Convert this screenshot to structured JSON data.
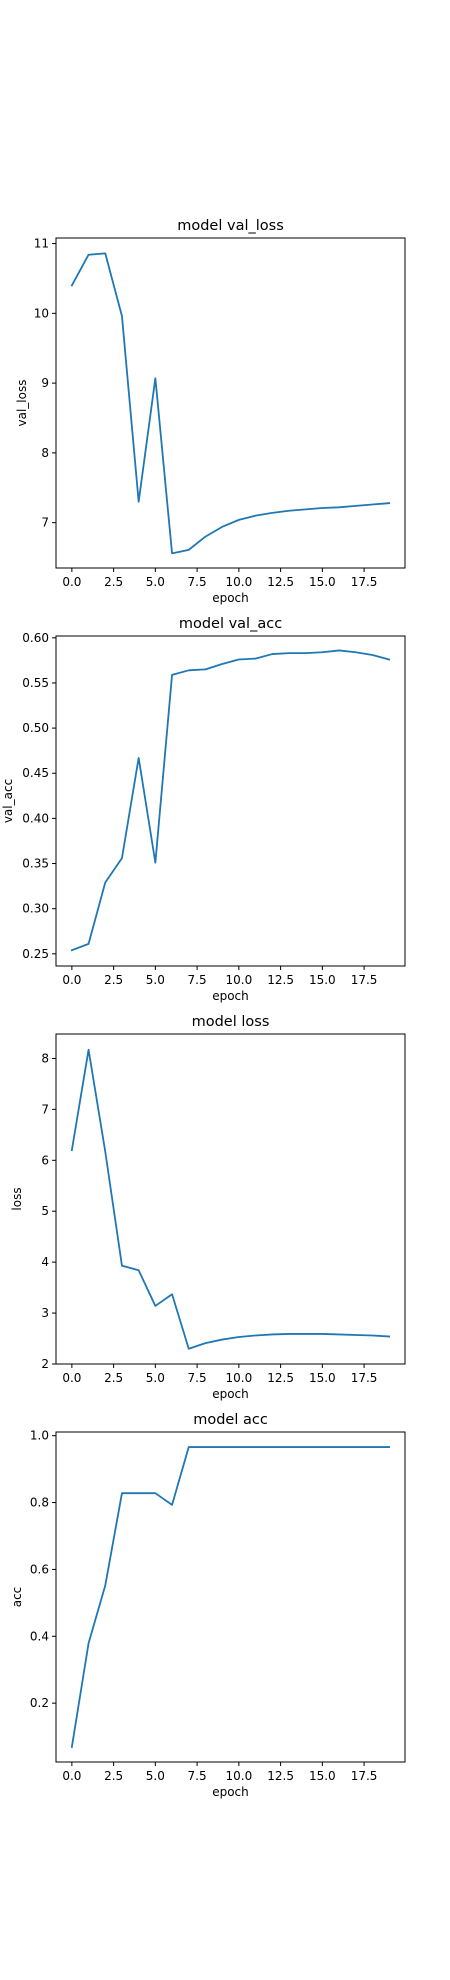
{
  "colors": {
    "series": "#1f77b4",
    "axes": "#000000",
    "background": "#ffffff"
  },
  "chart_data": [
    {
      "type": "line",
      "title": "model val_loss",
      "xlabel": "epoch",
      "ylabel": "val_loss",
      "xlim": [
        -0.95,
        19.95
      ],
      "ylim": [
        6.35,
        11.08
      ],
      "xticks": [
        0,
        2.5,
        5,
        7.5,
        10,
        12.5,
        15,
        17.5
      ],
      "xtick_labels": [
        "0.0",
        "2.5",
        "5.0",
        "7.5",
        "10.0",
        "12.5",
        "15.0",
        "17.5"
      ],
      "yticks": [
        7,
        8,
        9,
        10,
        11
      ],
      "ytick_labels": [
        "7",
        "8",
        "9",
        "10",
        "11"
      ],
      "grid": false,
      "series": [
        {
          "x": [
            0,
            1,
            2,
            3,
            4,
            5,
            6,
            7,
            8,
            9,
            10,
            11,
            12,
            13,
            14,
            15,
            16,
            17,
            18,
            19
          ],
          "values": [
            10.4,
            10.84,
            10.86,
            9.96,
            7.3,
            9.07,
            6.56,
            6.61,
            6.8,
            6.94,
            7.04,
            7.1,
            7.14,
            7.17,
            7.19,
            7.21,
            7.22,
            7.24,
            7.26,
            7.28
          ]
        }
      ]
    },
    {
      "type": "line",
      "title": "model val_acc",
      "xlabel": "epoch",
      "ylabel": "val_acc",
      "xlim": [
        -0.95,
        19.95
      ],
      "ylim": [
        0.2365,
        0.602
      ],
      "xticks": [
        0,
        2.5,
        5,
        7.5,
        10,
        12.5,
        15,
        17.5
      ],
      "xtick_labels": [
        "0.0",
        "2.5",
        "5.0",
        "7.5",
        "10.0",
        "12.5",
        "15.0",
        "17.5"
      ],
      "yticks": [
        0.25,
        0.3,
        0.35,
        0.4,
        0.45,
        0.5,
        0.55,
        0.6
      ],
      "ytick_labels": [
        "0.25",
        "0.30",
        "0.35",
        "0.40",
        "0.45",
        "0.50",
        "0.55",
        "0.60"
      ],
      "grid": false,
      "series": [
        {
          "x": [
            0,
            1,
            2,
            3,
            4,
            5,
            6,
            7,
            8,
            9,
            10,
            11,
            12,
            13,
            14,
            15,
            16,
            17,
            18,
            19
          ],
          "values": [
            0.254,
            0.261,
            0.329,
            0.356,
            0.467,
            0.351,
            0.559,
            0.564,
            0.565,
            0.571,
            0.576,
            0.577,
            0.582,
            0.583,
            0.583,
            0.584,
            0.586,
            0.584,
            0.581,
            0.576
          ]
        }
      ]
    },
    {
      "type": "line",
      "title": "model loss",
      "xlabel": "epoch",
      "ylabel": "loss",
      "xlim": [
        -0.95,
        19.95
      ],
      "ylim": [
        2.0,
        8.48
      ],
      "xticks": [
        0,
        2.5,
        5,
        7.5,
        10,
        12.5,
        15,
        17.5
      ],
      "xtick_labels": [
        "0.0",
        "2.5",
        "5.0",
        "7.5",
        "10.0",
        "12.5",
        "15.0",
        "17.5"
      ],
      "yticks": [
        2,
        3,
        4,
        5,
        6,
        7,
        8
      ],
      "ytick_labels": [
        "2",
        "3",
        "4",
        "5",
        "6",
        "7",
        "8"
      ],
      "grid": false,
      "series": [
        {
          "x": [
            0,
            1,
            2,
            3,
            4,
            5,
            6,
            7,
            8,
            9,
            10,
            11,
            12,
            13,
            14,
            15,
            16,
            17,
            18,
            19
          ],
          "values": [
            6.2,
            8.17,
            6.17,
            3.93,
            3.84,
            3.14,
            3.37,
            2.3,
            2.41,
            2.48,
            2.53,
            2.56,
            2.58,
            2.59,
            2.59,
            2.59,
            2.58,
            2.57,
            2.56,
            2.54
          ]
        }
      ]
    },
    {
      "type": "line",
      "title": "model acc",
      "xlabel": "epoch",
      "ylabel": "acc",
      "xlim": [
        -0.95,
        19.95
      ],
      "ylim": [
        0.024,
        1.011
      ],
      "xticks": [
        0,
        2.5,
        5,
        7.5,
        10,
        12.5,
        15,
        17.5
      ],
      "xtick_labels": [
        "0.0",
        "2.5",
        "5.0",
        "7.5",
        "10.0",
        "12.5",
        "15.0",
        "17.5"
      ],
      "yticks": [
        0.2,
        0.4,
        0.6,
        0.8,
        1.0
      ],
      "ytick_labels": [
        "0.2",
        "0.4",
        "0.6",
        "0.8",
        "1.0"
      ],
      "grid": false,
      "series": [
        {
          "x": [
            0,
            1,
            2,
            3,
            4,
            5,
            6,
            7,
            8,
            9,
            10,
            11,
            12,
            13,
            14,
            15,
            16,
            17,
            18,
            19
          ],
          "values": [
            0.069,
            0.379,
            0.552,
            0.828,
            0.828,
            0.828,
            0.793,
            0.966,
            0.966,
            0.966,
            0.966,
            0.966,
            0.966,
            0.966,
            0.966,
            0.966,
            0.966,
            0.966,
            0.966,
            0.966
          ]
        }
      ]
    }
  ]
}
